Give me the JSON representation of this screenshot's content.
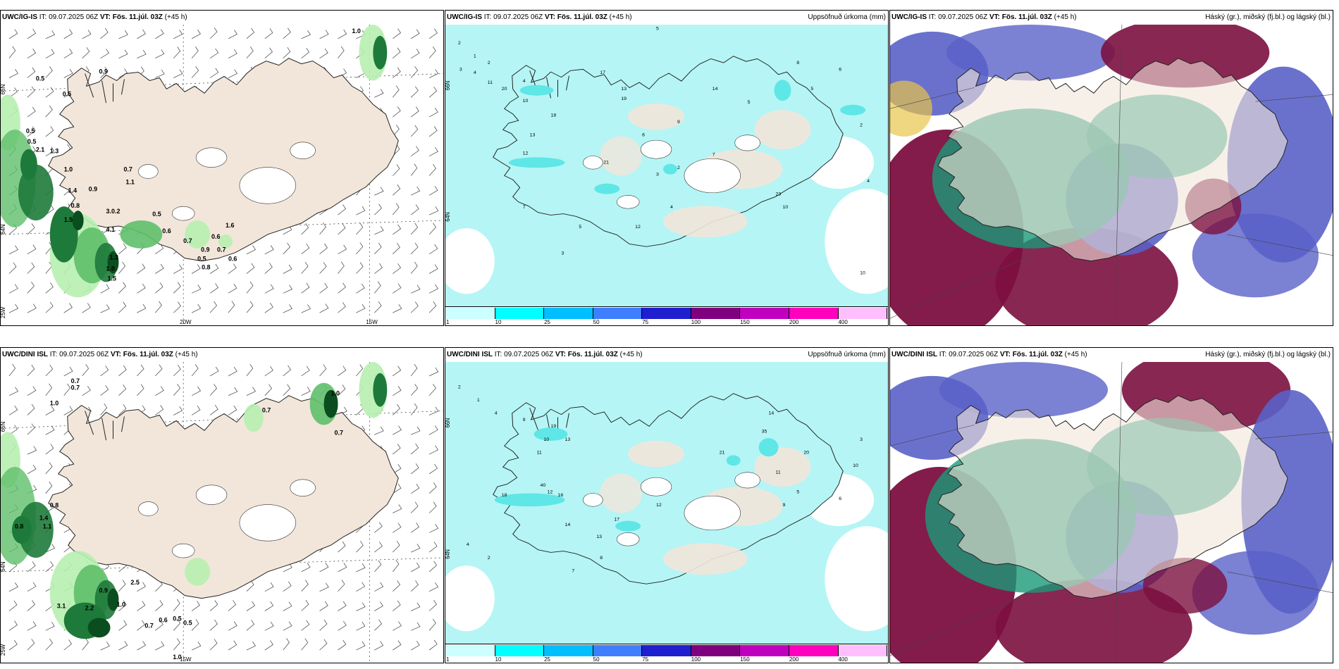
{
  "panels": [
    {
      "model": "UWC/IG-IS",
      "it_label": "IT:",
      "it_value": "09.07.2025 06Z",
      "vt_label": "VT:",
      "vt_value": "Fös. 11.júl. 03Z",
      "lead": "(+45 h)",
      "right_title": "",
      "axis_labels": [
        "66N",
        "64N",
        "25W",
        "20W",
        "15W"
      ],
      "values": [
        "1.0",
        "0.5",
        "0.9",
        "0.5",
        "0.5",
        "0.5",
        "2.1",
        "1.3",
        "1.0",
        "0.7",
        "1.1",
        "0.9",
        "1.4",
        "0.8",
        "1.5",
        "3.0.2",
        "0.5",
        "0.6",
        "0.7",
        "4.1",
        "1.3",
        "1.0",
        "1.5",
        "0.6",
        "0.9",
        "0.7",
        "0.5",
        "0.6",
        "0.8",
        "1.6"
      ]
    },
    {
      "model": "UWC/IG-IS",
      "it_label": "IT:",
      "it_value": "09.07.2025 06Z",
      "vt_label": "VT:",
      "vt_value": "Fös. 11.júl. 03Z",
      "lead": "(+45 h)",
      "right_title": "Uppsöfnuð úrkoma (mm)",
      "axis_labels": [
        "66N",
        "64N"
      ],
      "values": [
        "2",
        "1",
        "2",
        "3",
        "4",
        "11",
        "20",
        "10",
        "4",
        "5",
        "3",
        "17",
        "19",
        "13",
        "14",
        "2",
        "12",
        "21",
        "13",
        "18",
        "23",
        "6",
        "4",
        "9",
        "7",
        "10",
        "5",
        "8",
        "5",
        "6",
        "2",
        "4",
        "10",
        "7",
        "5",
        "12",
        "3"
      ],
      "colorbar": {
        "colors": [
          "#ccffff",
          "#00ffff",
          "#00bfff",
          "#3f7fff",
          "#1f1fcf",
          "#7f007f",
          "#bf00bf",
          "#ff00bf",
          "#ffbfff"
        ],
        "ticks": [
          "1",
          "10",
          "25",
          "50",
          "75",
          "100",
          "150",
          "200",
          "400"
        ]
      }
    },
    {
      "model": "UWC/IG-IS",
      "it_label": "IT:",
      "it_value": "09.07.2025 06Z",
      "vt_label": "VT:",
      "vt_value": "Fös. 11.júl. 03Z",
      "lead": "(+45 h)",
      "right_title": "Háský (gr.), miðský (fj.bl.) og lágský (bl.)",
      "axis_labels": [],
      "values": []
    },
    {
      "model": "UWC/DINI ISL",
      "it_label": "IT:",
      "it_value": "09.07.2025 06Z",
      "vt_label": "VT:",
      "vt_value": "Fös. 11.júl. 03Z",
      "lead": "(+45 h)",
      "right_title": "",
      "axis_labels": [
        "66N",
        "64N",
        "25W",
        "15W"
      ],
      "values": [
        "0.7",
        "0.7",
        "1.0",
        "0.7",
        "1.0",
        "0.7",
        "0.8",
        "1.4",
        "0.8",
        "1.1",
        "0.9",
        "2.5",
        "1.0",
        "0.6",
        "0.5",
        "0.5",
        "3.1",
        "2.2",
        "0.7",
        "1.0"
      ]
    },
    {
      "model": "UWC/DINI ISL",
      "it_label": "IT:",
      "it_value": "09.07.2025 06Z",
      "vt_label": "VT:",
      "vt_value": "Fös. 11.júl. 03Z",
      "lead": "(+45 h)",
      "right_title": "Uppsöfnuð úrkoma (mm)",
      "axis_labels": [
        "66N",
        "64N"
      ],
      "values": [
        "2",
        "1",
        "4",
        "9",
        "13",
        "10",
        "19",
        "11",
        "12",
        "40",
        "18",
        "16",
        "14",
        "13",
        "17",
        "12",
        "35",
        "21",
        "20",
        "10",
        "6",
        "3",
        "14",
        "11",
        "9",
        "5",
        "7",
        "8",
        "2",
        "4"
      ],
      "colorbar": {
        "colors": [
          "#ccffff",
          "#00ffff",
          "#00bfff",
          "#3f7fff",
          "#1f1fcf",
          "#7f007f",
          "#bf00bf",
          "#ff00bf",
          "#ffbfff"
        ],
        "ticks": [
          "1",
          "10",
          "25",
          "50",
          "75",
          "100",
          "150",
          "200",
          "400"
        ]
      }
    },
    {
      "model": "UWC/DINI ISL",
      "it_label": "IT:",
      "it_value": "09.07.2025 06Z",
      "vt_label": "VT:",
      "vt_value": "Fös. 11.júl. 03Z",
      "lead": "(+45 h)",
      "right_title": "Háský (gr.), miðský (fj.bl.) og lágský (bl.)",
      "axis_labels": [],
      "values": []
    }
  ],
  "colors": {
    "land": "#f2e6da",
    "green_light": "#b7efb0",
    "green_dark": "#0a4d1e",
    "cyan_precip": "#b5f5f5",
    "cyan_mid": "#5fe6e6",
    "cloud_purple": "#5a62c8",
    "cloud_maroon": "#7c1040",
    "cloud_teal": "#1a9a78"
  }
}
